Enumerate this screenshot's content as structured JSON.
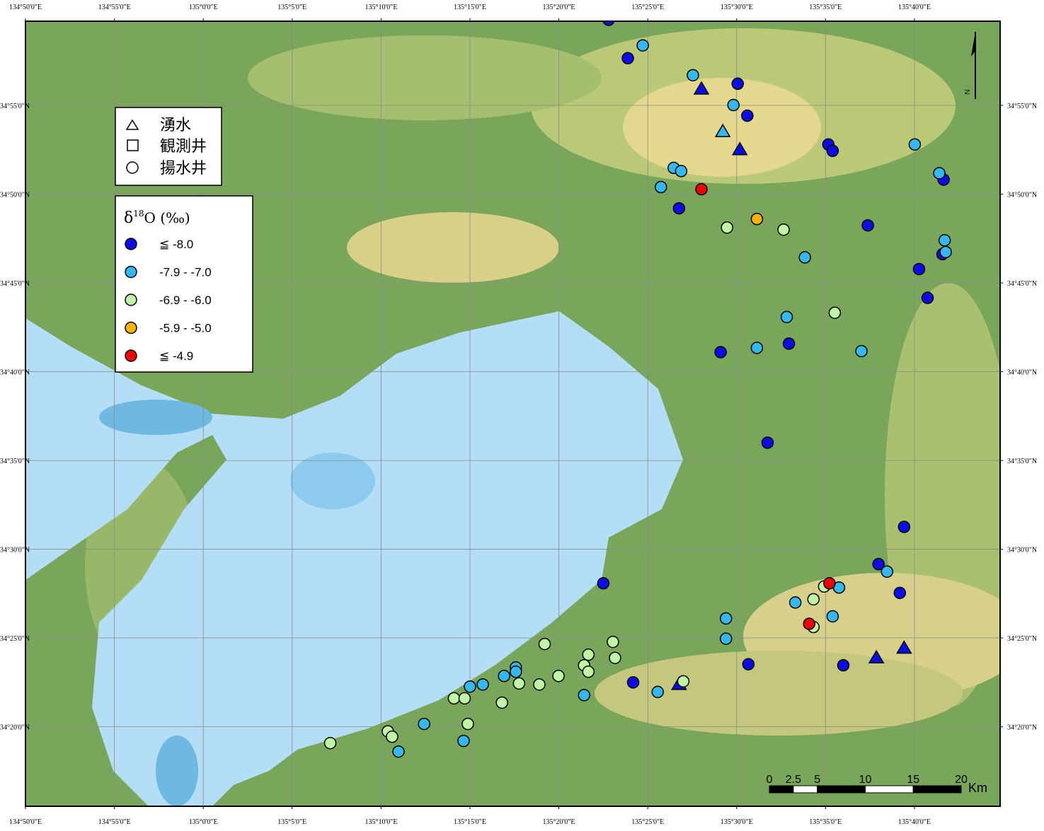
{
  "chart_data": {
    "type": "map",
    "xlim": [
      134.8333,
      135.747
    ],
    "ylim": [
      34.2587,
      34.9957
    ],
    "xticks": [
      {
        "value": 134.8333,
        "label": "134°50'0\"E"
      },
      {
        "value": 134.9167,
        "label": "134°55'0\"E"
      },
      {
        "value": 135.0,
        "label": "135°0'0\"E"
      },
      {
        "value": 135.0833,
        "label": "135°5'0\"E"
      },
      {
        "value": 135.1667,
        "label": "135°10'0\"E"
      },
      {
        "value": 135.25,
        "label": "135°15'0\"E"
      },
      {
        "value": 135.3333,
        "label": "135°20'0\"E"
      },
      {
        "value": 135.4167,
        "label": "135°25'0\"E"
      },
      {
        "value": 135.5,
        "label": "135°30'0\"E"
      },
      {
        "value": 135.5833,
        "label": "135°35'0\"E"
      },
      {
        "value": 135.6667,
        "label": "135°40'0\"E"
      }
    ],
    "yticks": [
      {
        "value": 34.9167,
        "label": "34°55'0\"N"
      },
      {
        "value": 34.8333,
        "label": "34°50'0\"N"
      },
      {
        "value": 34.75,
        "label": "34°45'0\"N"
      },
      {
        "value": 34.6667,
        "label": "34°40'0\"N"
      },
      {
        "value": 34.5833,
        "label": "34°35'0\"N"
      },
      {
        "value": 34.5,
        "label": "34°30'0\"N"
      },
      {
        "value": 34.4167,
        "label": "34°25'0\"N"
      },
      {
        "value": 34.3333,
        "label": "34°20'0\"N"
      }
    ],
    "grid": true,
    "shape_legend": [
      "湧水",
      "観測井",
      "揚水井"
    ],
    "legend_title": {
      "main": "δ",
      "sup": "18",
      "rest": "O (‰)"
    },
    "series": [
      {
        "name": "≦ -8.0",
        "color": "#0c0ce6",
        "springs": [
          [
            135.467,
            34.932
          ],
          [
            135.503,
            34.875
          ],
          [
            135.446,
            34.373
          ],
          [
            135.631,
            34.398
          ],
          [
            135.657,
            34.407
          ]
        ],
        "wells": [
          [
            135.38,
            34.997
          ],
          [
            135.398,
            34.961
          ],
          [
            135.501,
            34.937
          ],
          [
            135.51,
            34.907
          ],
          [
            135.586,
            34.88
          ],
          [
            135.59,
            34.874
          ],
          [
            135.694,
            34.847
          ],
          [
            135.446,
            34.82
          ],
          [
            135.623,
            34.804
          ],
          [
            135.693,
            34.777
          ],
          [
            135.671,
            34.763
          ],
          [
            135.679,
            34.736
          ],
          [
            135.549,
            34.693
          ],
          [
            135.485,
            34.685
          ],
          [
            135.529,
            34.6
          ],
          [
            135.657,
            34.521
          ],
          [
            135.633,
            34.486
          ],
          [
            135.653,
            34.459
          ],
          [
            135.375,
            34.468
          ],
          [
            135.511,
            34.392
          ],
          [
            135.6,
            34.391
          ],
          [
            135.403,
            34.375
          ]
        ]
      },
      {
        "name": "-7.9 - -7.0",
        "color": "#35b8f0",
        "springs": [
          [
            135.487,
            34.892
          ]
        ],
        "wells": [
          [
            135.412,
            34.973
          ],
          [
            135.459,
            34.945
          ],
          [
            135.497,
            34.917
          ],
          [
            135.667,
            34.88
          ],
          [
            135.69,
            34.853
          ],
          [
            135.441,
            34.858
          ],
          [
            135.448,
            34.855
          ],
          [
            135.429,
            34.84
          ],
          [
            135.695,
            34.79
          ],
          [
            135.696,
            34.779
          ],
          [
            135.564,
            34.774
          ],
          [
            135.547,
            34.718
          ],
          [
            135.519,
            34.689
          ],
          [
            135.617,
            34.686
          ],
          [
            135.641,
            34.479
          ],
          [
            135.596,
            34.464
          ],
          [
            135.555,
            34.45
          ],
          [
            135.49,
            34.435
          ],
          [
            135.59,
            34.437
          ],
          [
            135.49,
            34.416
          ],
          [
            135.293,
            34.389
          ],
          [
            135.293,
            34.385
          ],
          [
            135.282,
            34.381
          ],
          [
            135.262,
            34.373
          ],
          [
            135.25,
            34.371
          ],
          [
            135.357,
            34.363
          ],
          [
            135.426,
            34.366
          ],
          [
            135.207,
            34.336
          ],
          [
            135.244,
            34.32
          ],
          [
            135.183,
            34.31
          ]
        ]
      },
      {
        "name": "-6.9 - -6.0",
        "color": "#bff5a4",
        "springs": [],
        "wells": [
          [
            135.491,
            34.802
          ],
          [
            135.544,
            34.8
          ],
          [
            135.592,
            34.722
          ],
          [
            135.582,
            34.465
          ],
          [
            135.572,
            34.453
          ],
          [
            135.572,
            34.427
          ],
          [
            135.32,
            34.411
          ],
          [
            135.384,
            34.413
          ],
          [
            135.386,
            34.398
          ],
          [
            135.361,
            34.401
          ],
          [
            135.357,
            34.391
          ],
          [
            135.361,
            34.385
          ],
          [
            135.296,
            34.374
          ],
          [
            135.315,
            34.373
          ],
          [
            135.333,
            34.381
          ],
          [
            135.235,
            34.36
          ],
          [
            135.245,
            34.36
          ],
          [
            135.28,
            34.356
          ],
          [
            135.45,
            34.376
          ],
          [
            135.248,
            34.336
          ],
          [
            135.173,
            34.329
          ],
          [
            135.177,
            34.324
          ],
          [
            135.119,
            34.318
          ]
        ]
      },
      {
        "name": "-5.9 - -5.0",
        "color": "#f5b400",
        "springs": [],
        "wells": [
          [
            135.519,
            34.81
          ]
        ]
      },
      {
        "name": "≦ -4.9",
        "color": "#f00000",
        "springs": [],
        "wells": [
          [
            135.467,
            34.838
          ],
          [
            135.587,
            34.468
          ],
          [
            135.568,
            34.43
          ]
        ]
      }
    ],
    "scale_bar": {
      "ticks": [
        0,
        2.5,
        5,
        10,
        15,
        20
      ],
      "unit": "Km"
    },
    "north": "N"
  }
}
